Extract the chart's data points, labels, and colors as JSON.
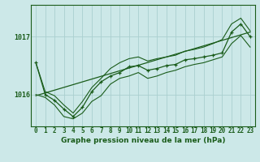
{
  "title": "Graphe pression niveau de la mer (hPa)",
  "bg_color": "#cce8e8",
  "plot_bg_color": "#cce8e8",
  "grid_color": "#aacfcf",
  "line_color": "#1a5c1a",
  "x_min": -0.5,
  "x_max": 23.5,
  "y_min": 1015.45,
  "y_max": 1017.55,
  "y_ticks": [
    1016,
    1017
  ],
  "hours": [
    0,
    1,
    2,
    3,
    4,
    5,
    6,
    7,
    8,
    9,
    10,
    11,
    12,
    13,
    14,
    15,
    16,
    17,
    18,
    19,
    20,
    21,
    22,
    23
  ],
  "pressure_main": [
    1016.55,
    1016.0,
    1015.9,
    1015.75,
    1015.62,
    1015.78,
    1016.05,
    1016.22,
    1016.32,
    1016.38,
    1016.48,
    1016.5,
    1016.42,
    1016.45,
    1016.5,
    1016.52,
    1016.6,
    1016.62,
    1016.65,
    1016.68,
    1016.72,
    1017.08,
    1017.22,
    1017.0
  ],
  "pressure_low": [
    1016.0,
    1015.95,
    1015.82,
    1015.62,
    1015.58,
    1015.68,
    1015.88,
    1015.98,
    1016.18,
    1016.28,
    1016.32,
    1016.38,
    1016.28,
    1016.32,
    1016.38,
    1016.42,
    1016.48,
    1016.52,
    1016.55,
    1016.6,
    1016.65,
    1016.88,
    1017.02,
    1016.82
  ],
  "pressure_high": [
    1016.55,
    1016.05,
    1015.98,
    1015.82,
    1015.68,
    1015.88,
    1016.12,
    1016.28,
    1016.45,
    1016.55,
    1016.62,
    1016.65,
    1016.58,
    1016.62,
    1016.65,
    1016.68,
    1016.75,
    1016.78,
    1016.82,
    1016.88,
    1016.95,
    1017.22,
    1017.32,
    1017.1
  ],
  "trend_x": [
    0,
    23
  ],
  "trend_y": [
    1015.98,
    1017.08
  ],
  "title_fontsize": 6.5,
  "tick_fontsize": 5.5
}
